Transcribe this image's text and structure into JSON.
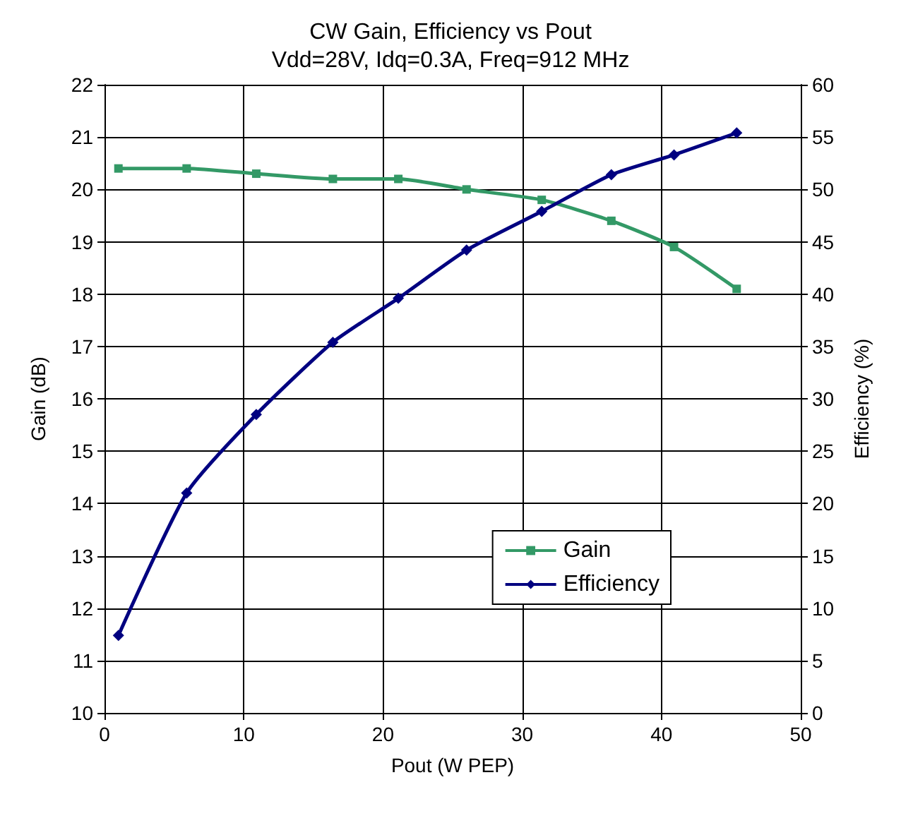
{
  "chart_data": {
    "type": "line",
    "title": "CW Gain, Efficiency vs Pout",
    "subtitle": "Vdd=28V, Idq=0.3A, Freq=912 MHz",
    "xlabel": "Pout (W PEP)",
    "ylabel": "Gain (dB)",
    "y2label": "Efficiency (%)",
    "xlim": [
      0,
      50
    ],
    "xticks": [
      0,
      10,
      20,
      30,
      40,
      50
    ],
    "ylim": [
      10,
      22
    ],
    "yticks": [
      10,
      11,
      12,
      13,
      14,
      15,
      16,
      17,
      18,
      19,
      20,
      21,
      22
    ],
    "y2lim": [
      0,
      60
    ],
    "y2ticks": [
      0,
      5,
      10,
      15,
      20,
      25,
      30,
      35,
      40,
      45,
      50,
      55,
      60
    ],
    "grid": true,
    "legend": "right",
    "series": [
      {
        "name": "Gain",
        "color": "#339966",
        "marker": "square",
        "x": [
          1,
          5.9,
          10.9,
          16.4,
          21.1,
          26.0,
          31.4,
          36.4,
          40.9,
          45.4
        ],
        "values": [
          20.4,
          20.4,
          20.3,
          20.2,
          20.2,
          20.0,
          19.8,
          19.4,
          18.9,
          18.1
        ]
      },
      {
        "name": "Efficiency",
        "color": "#000080",
        "marker": "diamond",
        "axis": "y2",
        "x": [
          1,
          5.9,
          10.9,
          16.4,
          21.1,
          26.0,
          31.4,
          36.4,
          40.9,
          45.4
        ],
        "values": [
          7.4,
          21.0,
          28.5,
          35.4,
          39.6,
          44.2,
          47.9,
          51.4,
          53.3,
          55.4
        ]
      }
    ]
  }
}
